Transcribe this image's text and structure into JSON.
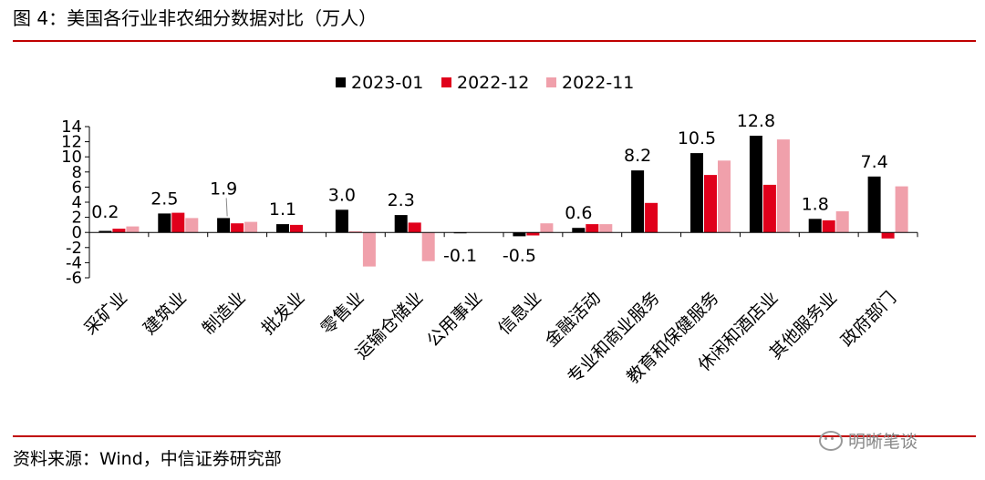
{
  "header": {
    "title": "图 4：美国各行业非农细分数据对比（万人）"
  },
  "footer": {
    "source": "资料来源：Wind，中信证券研究部",
    "watermark": "明晰笔谈"
  },
  "colors": {
    "rule": "#c00000",
    "series": [
      "#000000",
      "#e0001b",
      "#f0a0ab"
    ]
  },
  "chart_data": {
    "type": "bar",
    "title": "",
    "xlabel": "",
    "ylabel": "",
    "ylim": [
      -6,
      14
    ],
    "yticks": [
      -6,
      -4,
      -2,
      0,
      2,
      4,
      6,
      8,
      10,
      12,
      14
    ],
    "legend_position": "top",
    "grid": false,
    "categories": [
      "采矿业",
      "建筑业",
      "制造业",
      "批发业",
      "零售业",
      "运输仓储业",
      "公用事业",
      "信息业",
      "金融活动",
      "专业和商业服务",
      "教育和保健服务",
      "休闲和酒店业",
      "其他服务业",
      "政府部门"
    ],
    "series": [
      {
        "name": "2023-01",
        "values": [
          0.2,
          2.5,
          1.9,
          1.1,
          3.0,
          2.3,
          -0.1,
          -0.5,
          0.6,
          8.2,
          10.5,
          12.8,
          1.8,
          7.4
        ]
      },
      {
        "name": "2022-12",
        "values": [
          0.5,
          2.6,
          1.2,
          1.0,
          0.1,
          1.3,
          0.0,
          -0.4,
          1.1,
          3.9,
          7.6,
          6.3,
          1.6,
          -0.8
        ]
      },
      {
        "name": "2022-11",
        "values": [
          0.8,
          1.9,
          1.4,
          0.0,
          -4.5,
          -3.8,
          0.0,
          1.2,
          1.1,
          0.0,
          9.5,
          12.3,
          2.8,
          6.1
        ]
      }
    ],
    "data_labels": [
      "0.2",
      "2.5",
      "1.9",
      "1.1",
      "3.0",
      "2.3",
      "-0.1",
      "-0.5",
      "0.6",
      "8.2",
      "10.5",
      "12.8",
      "1.8",
      "7.4"
    ]
  }
}
